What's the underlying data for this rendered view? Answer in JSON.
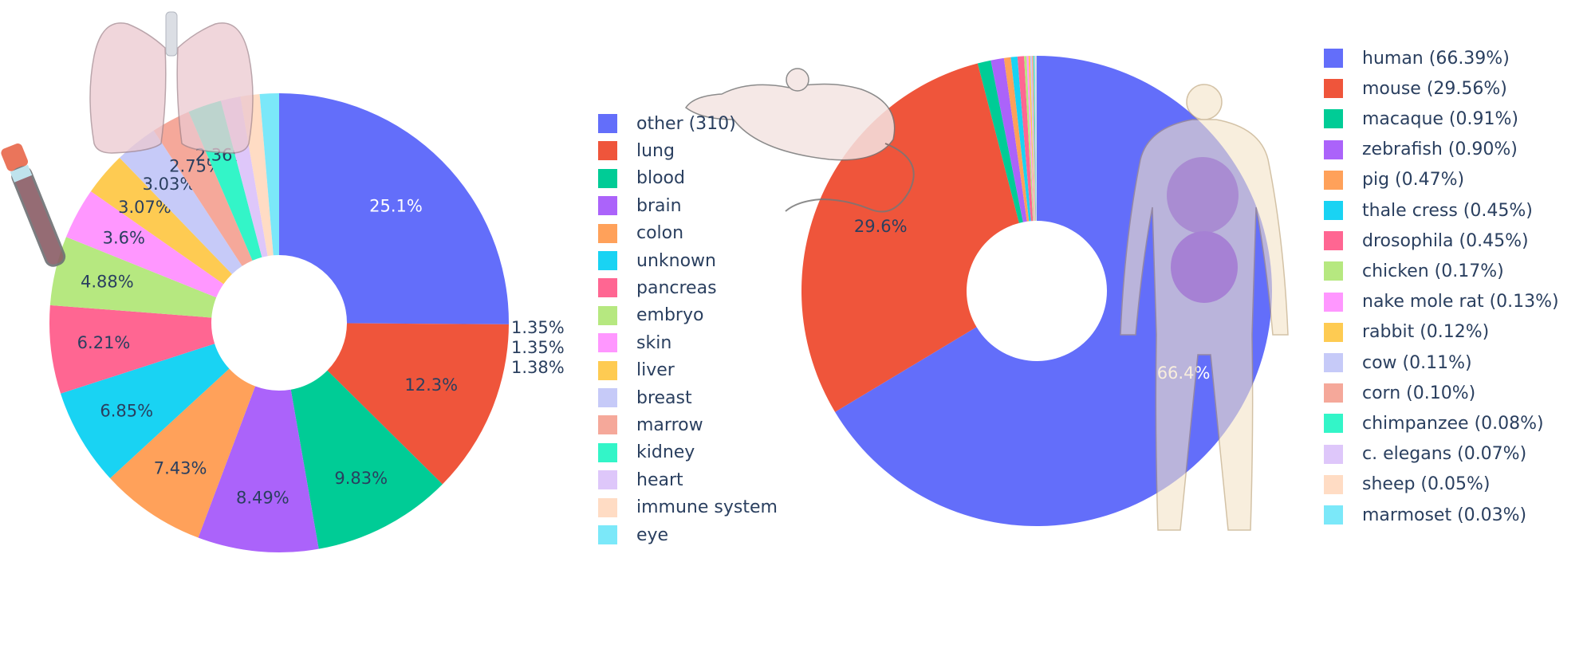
{
  "chart_data": [
    {
      "type": "pie",
      "hole": true,
      "legend_position": "right",
      "slices": [
        {
          "label": "other (310)",
          "value": 25.1,
          "color": "#636efa",
          "text": "25.1%"
        },
        {
          "label": "lung",
          "value": 12.3,
          "color": "#ef553b",
          "text": "12.3%"
        },
        {
          "label": "blood",
          "value": 9.83,
          "color": "#00cc96",
          "text": "9.83%"
        },
        {
          "label": "brain",
          "value": 8.49,
          "color": "#ab63fa",
          "text": "8.49%"
        },
        {
          "label": "colon",
          "value": 7.43,
          "color": "#ffa15a",
          "text": "7.43%"
        },
        {
          "label": "unknown",
          "value": 6.85,
          "color": "#19d3f3",
          "text": "6.85%"
        },
        {
          "label": "pancreas",
          "value": 6.21,
          "color": "#ff6692",
          "text": "6.21%"
        },
        {
          "label": "embryo",
          "value": 4.88,
          "color": "#b6e880",
          "text": "4.88%"
        },
        {
          "label": "skin",
          "value": 3.6,
          "color": "#ff97ff",
          "text": "3.6%"
        },
        {
          "label": "liver",
          "value": 3.07,
          "color": "#fecb52",
          "text": "3.07%"
        },
        {
          "label": "breast",
          "value": 3.03,
          "color": "#c6caf8",
          "text": "3.03%"
        },
        {
          "label": "marrow",
          "value": 2.75,
          "color": "#f5a89a",
          "text": "2.75%"
        },
        {
          "label": "kidney",
          "value": 2.36,
          "color": "#33f5c8",
          "text": "2.36%"
        },
        {
          "label": "heart",
          "value": 1.38,
          "color": "#dec7fa",
          "text": "1.38%"
        },
        {
          "label": "immune system",
          "value": 1.35,
          "color": "#ffdcc4",
          "text": "1.35%"
        },
        {
          "label": "eye",
          "value": 1.35,
          "color": "#7be8f9",
          "text": "1.35%"
        }
      ]
    },
    {
      "type": "pie",
      "hole": true,
      "legend_position": "right",
      "slices": [
        {
          "label": "human (66.39%)",
          "value": 66.39,
          "color": "#636efa",
          "text": "66.4%"
        },
        {
          "label": "mouse (29.56%)",
          "value": 29.56,
          "color": "#ef553b",
          "text": "29.6%"
        },
        {
          "label": "macaque (0.91%)",
          "value": 0.91,
          "color": "#00cc96",
          "text": ""
        },
        {
          "label": "zebrafish (0.90%)",
          "value": 0.9,
          "color": "#ab63fa",
          "text": ""
        },
        {
          "label": "pig (0.47%)",
          "value": 0.47,
          "color": "#ffa15a",
          "text": ""
        },
        {
          "label": "thale cress (0.45%)",
          "value": 0.45,
          "color": "#19d3f3",
          "text": ""
        },
        {
          "label": "drosophila (0.45%)",
          "value": 0.45,
          "color": "#ff6692",
          "text": ""
        },
        {
          "label": "chicken (0.17%)",
          "value": 0.17,
          "color": "#b6e880",
          "text": ""
        },
        {
          "label": "nake mole rat (0.13%)",
          "value": 0.13,
          "color": "#ff97ff",
          "text": ""
        },
        {
          "label": "rabbit (0.12%)",
          "value": 0.12,
          "color": "#fecb52",
          "text": ""
        },
        {
          "label": "cow (0.11%)",
          "value": 0.11,
          "color": "#c6caf8",
          "text": ""
        },
        {
          "label": "corn (0.10%)",
          "value": 0.1,
          "color": "#f5a89a",
          "text": ""
        },
        {
          "label": "chimpanzee (0.08%)",
          "value": 0.08,
          "color": "#33f5c8",
          "text": ""
        },
        {
          "label": "c. elegans (0.07%)",
          "value": 0.07,
          "color": "#dec7fa",
          "text": ""
        },
        {
          "label": "sheep (0.05%)",
          "value": 0.05,
          "color": "#ffdcc4",
          "text": ""
        },
        {
          "label": "marmoset (0.03%)",
          "value": 0.03,
          "color": "#7be8f9",
          "text": ""
        }
      ]
    }
  ],
  "illustrations": {
    "lungs": "lungs-icon",
    "blood_tube": "blood-tube-icon",
    "mouse": "mouse-icon",
    "human": "human-body-icon"
  }
}
